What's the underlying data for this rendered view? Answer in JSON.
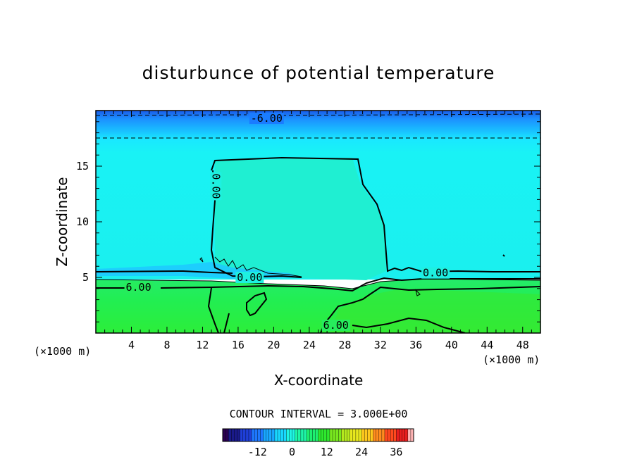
{
  "chart_data": {
    "type": "heatmap",
    "title": "disturbunce of potential temperature",
    "xlabel": "X-coordinate",
    "ylabel": "Z-coordinate",
    "x_unit": "(×1000 m)",
    "xlim": [
      0,
      50
    ],
    "ylim": [
      0,
      20
    ],
    "x_ticks": [
      "4",
      "8",
      "12",
      "16",
      "20",
      "24",
      "28",
      "32",
      "36",
      "40",
      "44",
      "48"
    ],
    "y_ticks": [
      "5",
      "10",
      "15"
    ],
    "contour_interval_text": "CONTOUR INTERVAL = 3.000E+00",
    "contour_labels": [
      {
        "text": "-6.00",
        "x": 19.2,
        "z": 19.3
      },
      {
        "text": "0.00",
        "x": 13.5,
        "z": 13.2
      },
      {
        "text": "0.00",
        "x": 17.3,
        "z": 5.0
      },
      {
        "text": "0.00",
        "x": 38.2,
        "z": 5.4
      },
      {
        "text": "6.00",
        "x": 4.8,
        "z": 4.1
      },
      {
        "text": "6.00",
        "x": 27.0,
        "z": 0.7
      }
    ],
    "colorbar": {
      "range": [
        -24,
        42
      ],
      "tick_labels": [
        "-12",
        "0",
        "12",
        "24",
        "36"
      ],
      "colors": [
        "#2a0050",
        "#1a1a8a",
        "#1f3fd8",
        "#1e78ff",
        "#19a8ff",
        "#19d8ff",
        "#1ff5e4",
        "#1ef5a8",
        "#1ef070",
        "#2ee82e",
        "#78e81e",
        "#b4e81e",
        "#e8e81e",
        "#ffc81e",
        "#ff8c1e",
        "#ff4a1e",
        "#e81e1e",
        "#ffb4b4"
      ]
    },
    "regions": {
      "upper_top": "#1a6cf0",
      "upper_mid": "#19c4ff",
      "middle": "#19f0f0",
      "cloud_core": "#1ef0c8",
      "lower": "#25ef55"
    }
  }
}
